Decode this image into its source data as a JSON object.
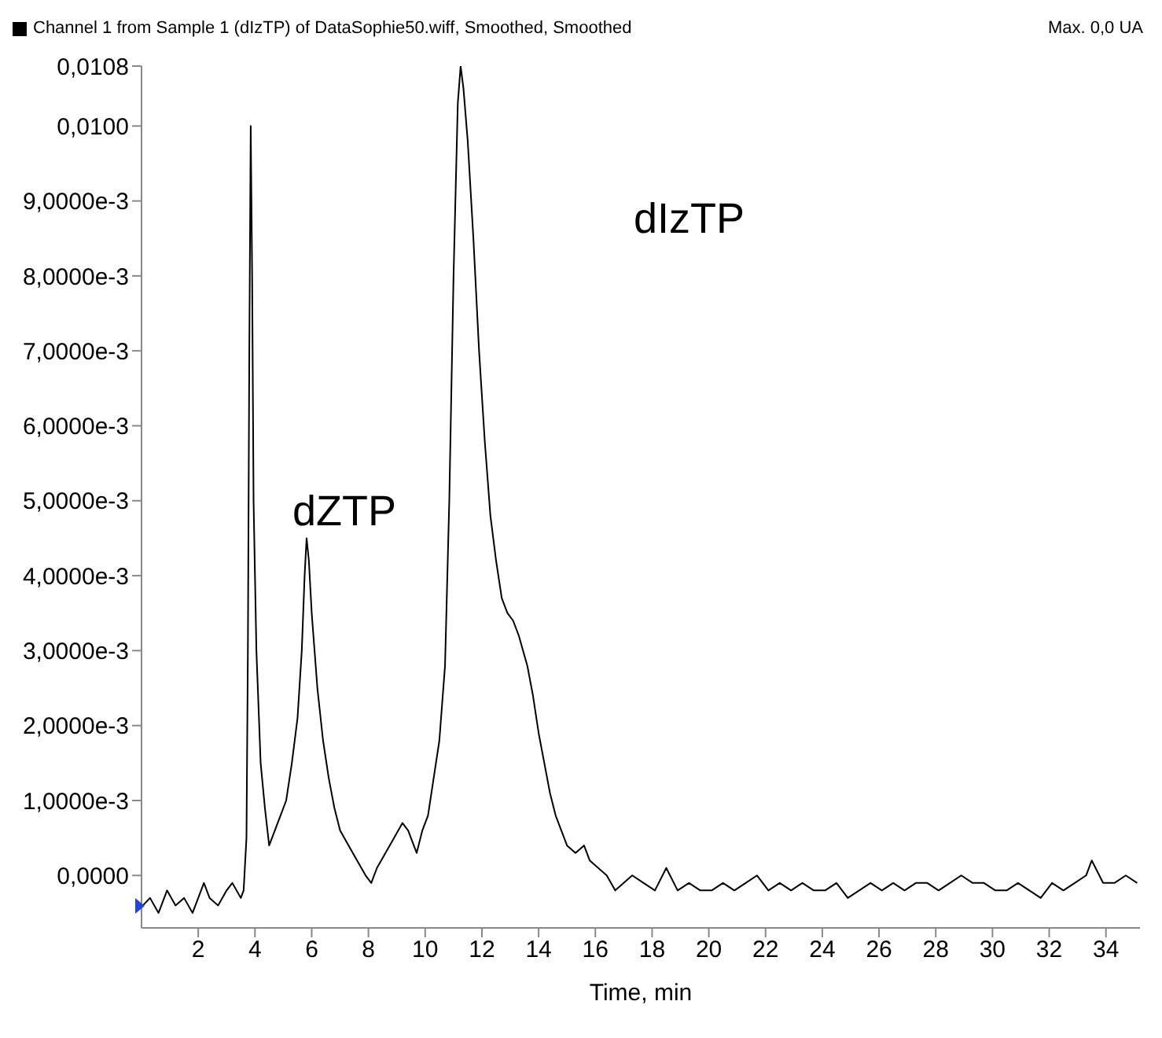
{
  "chart_data": {
    "type": "line",
    "xlabel": "Time, min",
    "legend": "top left",
    "marker": "none",
    "line_style": "solid",
    "annotations": [
      "Max. 0,0 UA",
      "dZTP",
      "dIzTP"
    ],
    "xlim": [
      0,
      35.2
    ],
    "xticks": [
      2,
      4,
      6,
      8,
      10,
      12,
      14,
      16,
      18,
      20,
      22,
      24,
      26,
      28,
      30,
      32,
      34
    ],
    "ylim": [
      -0.0007,
      0.0108
    ],
    "yticks": [
      {
        "value": 0,
        "label": "0,0000"
      },
      {
        "value": 0.001,
        "label": "1,0000e-3"
      },
      {
        "value": 0.002,
        "label": "2,0000e-3"
      },
      {
        "value": 0.003,
        "label": "3,0000e-3"
      },
      {
        "value": 0.004,
        "label": "4,0000e-3"
      },
      {
        "value": 0.005,
        "label": "5,0000e-3"
      },
      {
        "value": 0.006,
        "label": "6,0000e-3"
      },
      {
        "value": 0.007,
        "label": "7,0000e-3"
      },
      {
        "value": 0.008,
        "label": "8,0000e-3"
      },
      {
        "value": 0.009,
        "label": "9,0000e-3"
      },
      {
        "value": 0.01,
        "label": "0,0100"
      },
      {
        "value": 0.0108,
        "label": "0,0108"
      }
    ],
    "series": [
      {
        "name": "Channel 1 from Sample 1 (dIzTP) of DataSophie50.wiff, Smoothed, Smoothed",
        "color": "#000000",
        "x": [
          0.05,
          0.3,
          0.6,
          0.9,
          1.2,
          1.5,
          1.8,
          2.0,
          2.2,
          2.4,
          2.7,
          3.0,
          3.2,
          3.5,
          3.6,
          3.7,
          3.75,
          3.8,
          3.85,
          3.9,
          3.95,
          4.05,
          4.2,
          4.35,
          4.5,
          4.7,
          4.9,
          5.1,
          5.3,
          5.5,
          5.65,
          5.75,
          5.82,
          5.9,
          6.0,
          6.2,
          6.4,
          6.6,
          6.8,
          7.0,
          7.3,
          7.6,
          7.9,
          8.1,
          8.3,
          8.6,
          8.9,
          9.2,
          9.4,
          9.6,
          9.7,
          9.9,
          10.1,
          10.3,
          10.5,
          10.7,
          10.85,
          11.0,
          11.15,
          11.25,
          11.35,
          11.5,
          11.7,
          11.9,
          12.1,
          12.3,
          12.5,
          12.7,
          12.9,
          13.1,
          13.3,
          13.6,
          13.8,
          14.0,
          14.2,
          14.4,
          14.6,
          14.8,
          15.0,
          15.3,
          15.6,
          15.8,
          16.1,
          16.4,
          16.7,
          17.0,
          17.3,
          17.7,
          18.1,
          18.5,
          18.9,
          19.3,
          19.7,
          20.1,
          20.5,
          20.9,
          21.3,
          21.7,
          22.1,
          22.5,
          22.9,
          23.3,
          23.7,
          24.1,
          24.5,
          24.9,
          25.3,
          25.7,
          26.1,
          26.5,
          26.9,
          27.3,
          27.7,
          28.1,
          28.5,
          28.9,
          29.3,
          29.7,
          30.1,
          30.5,
          30.9,
          31.3,
          31.7,
          32.1,
          32.5,
          32.9,
          33.3,
          33.5,
          33.9,
          34.3,
          34.7,
          35.1
        ],
        "values": [
          -0.0004,
          -0.0003,
          -0.0005,
          -0.0002,
          -0.0004,
          -0.0003,
          -0.0005,
          -0.0003,
          -0.0001,
          -0.0003,
          -0.0004,
          -0.0002,
          -0.0001,
          -0.0003,
          -0.0002,
          0.0005,
          0.003,
          0.007,
          0.01,
          0.008,
          0.005,
          0.003,
          0.0015,
          0.0009,
          0.0004,
          0.0006,
          0.0008,
          0.001,
          0.0015,
          0.0021,
          0.003,
          0.004,
          0.0045,
          0.0042,
          0.0035,
          0.0025,
          0.0018,
          0.0013,
          0.0009,
          0.0006,
          0.0004,
          0.0002,
          0,
          -0.0001,
          0.0001,
          0.0003,
          0.0005,
          0.0007,
          0.0006,
          0.0004,
          0.0003,
          0.0006,
          0.0008,
          0.0013,
          0.0018,
          0.0028,
          0.005,
          0.008,
          0.0103,
          0.0108,
          0.0105,
          0.0098,
          0.0085,
          0.007,
          0.0058,
          0.0048,
          0.0042,
          0.0037,
          0.0035,
          0.0034,
          0.0032,
          0.0028,
          0.0024,
          0.0019,
          0.0015,
          0.0011,
          0.0008,
          0.0006,
          0.0004,
          0.0003,
          0.0004,
          0.0002,
          0.0001,
          0,
          -0.0002,
          -0.0001,
          0,
          -0.0001,
          -0.0002,
          0.0001,
          -0.0002,
          -0.0001,
          -0.0002,
          -0.0002,
          -0.0001,
          -0.0002,
          -0.0001,
          0,
          -0.0002,
          -0.0001,
          -0.0002,
          -0.0001,
          -0.0002,
          -0.0002,
          -0.0001,
          -0.0003,
          -0.0002,
          -0.0001,
          -0.0002,
          -0.0001,
          -0.0002,
          -0.0001,
          -0.0001,
          -0.0002,
          -0.0001,
          0,
          -0.0001,
          -0.0001,
          -0.0002,
          -0.0002,
          -0.0001,
          -0.0002,
          -0.0003,
          -0.0001,
          -0.0002,
          -0.0001,
          0,
          0.0002,
          -0.0001,
          -0.0001,
          0,
          -0.0001
        ]
      }
    ]
  }
}
